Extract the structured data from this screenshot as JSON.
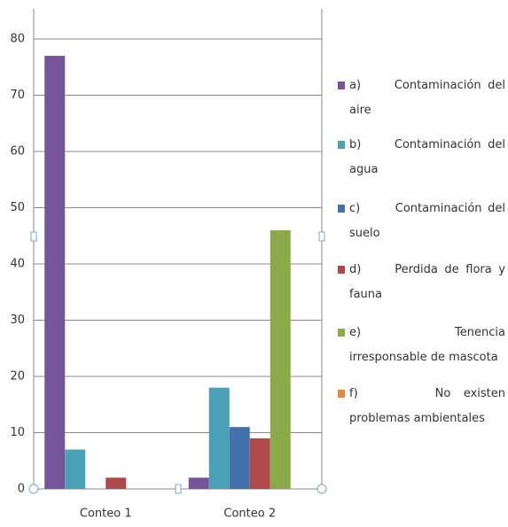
{
  "chart_data": {
    "type": "bar",
    "categories": [
      "Conteo 1",
      "Conteo 2"
    ],
    "series": [
      {
        "name": "a)     Contaminación del aire",
        "color": "#76569a",
        "values": [
          77,
          2
        ]
      },
      {
        "name": "b)     Contaminación del agua",
        "color": "#4aa1b6",
        "values": [
          7,
          18
        ]
      },
      {
        "name": "c)      Contaminación del suelo",
        "color": "#4471a9",
        "values": [
          0,
          11
        ]
      },
      {
        "name": "d)     Perdida de flora y fauna",
        "color": "#b0494a",
        "values": [
          2,
          9
        ]
      },
      {
        "name": "e)     Tenencia irresponsable de mascota",
        "color": "#8bab4b",
        "values": [
          0,
          46
        ]
      },
      {
        "name": "f)      No existen problemas ambientales",
        "color": "#e8883a",
        "values": [
          0,
          0
        ]
      }
    ],
    "ylim": [
      0,
      80
    ],
    "yticks": [
      0,
      10,
      20,
      30,
      40,
      50,
      60,
      70,
      80
    ],
    "grid": true,
    "legend": "right"
  }
}
